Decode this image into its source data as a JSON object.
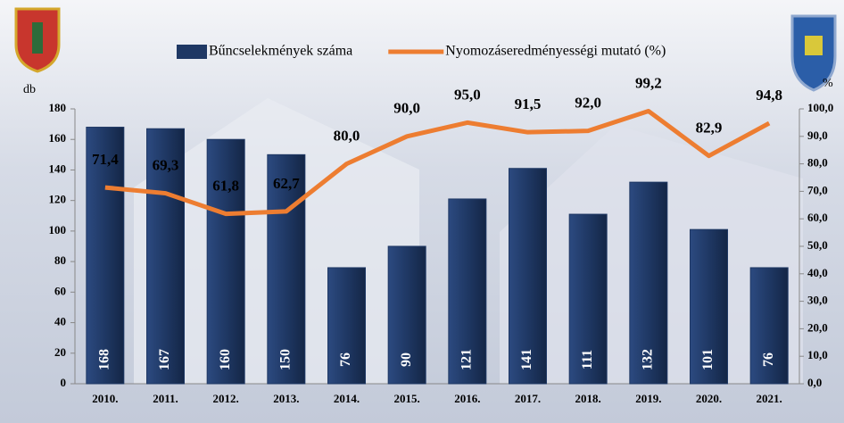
{
  "chart_data": {
    "type": "bar-line",
    "categories": [
      "2010.",
      "2011.",
      "2012.",
      "2013.",
      "2014.",
      "2015.",
      "2016.",
      "2017.",
      "2018.",
      "2019.",
      "2020.",
      "2021."
    ],
    "series": [
      {
        "name": "Bűncselekmények száma",
        "type": "bar",
        "color": "#1f3864",
        "values": [
          168,
          167,
          160,
          150,
          76,
          90,
          121,
          141,
          111,
          132,
          101,
          76
        ]
      },
      {
        "name": "Nyomozáseredményességi mutató (%)",
        "type": "line",
        "axis": "y2",
        "color": "#ed7d31",
        "values": [
          71.4,
          69.3,
          61.8,
          62.7,
          80.0,
          90.0,
          95.0,
          91.5,
          92.0,
          99.2,
          82.9,
          94.8
        ],
        "value_labels": [
          "71,4",
          "69,3",
          "61,8",
          "62,7",
          "80,0",
          "90,0",
          "95,0",
          "91,5",
          "92,0",
          "99,2",
          "82,9",
          "94,8"
        ]
      }
    ],
    "ylabel": "db",
    "y2label": "%",
    "ylim": [
      0,
      180
    ],
    "yticks": [
      0,
      20,
      40,
      60,
      80,
      100,
      120,
      140,
      160,
      180
    ],
    "y2lim": [
      0,
      100
    ],
    "y2ticks": [
      {
        "value": 0,
        "label": "0,0"
      },
      {
        "value": 10,
        "label": "10,0"
      },
      {
        "value": 20,
        "label": "20,0"
      },
      {
        "value": 30,
        "label": "30,0"
      },
      {
        "value": 40,
        "label": "40,0"
      },
      {
        "value": 50,
        "label": "50,0"
      },
      {
        "value": 60,
        "label": "60,0"
      },
      {
        "value": 70,
        "label": "70,0"
      },
      {
        "value": 80,
        "label": "80,0"
      },
      {
        "value": 90,
        "label": "90,0"
      },
      {
        "value": 100,
        "label": "100,0"
      }
    ]
  }
}
